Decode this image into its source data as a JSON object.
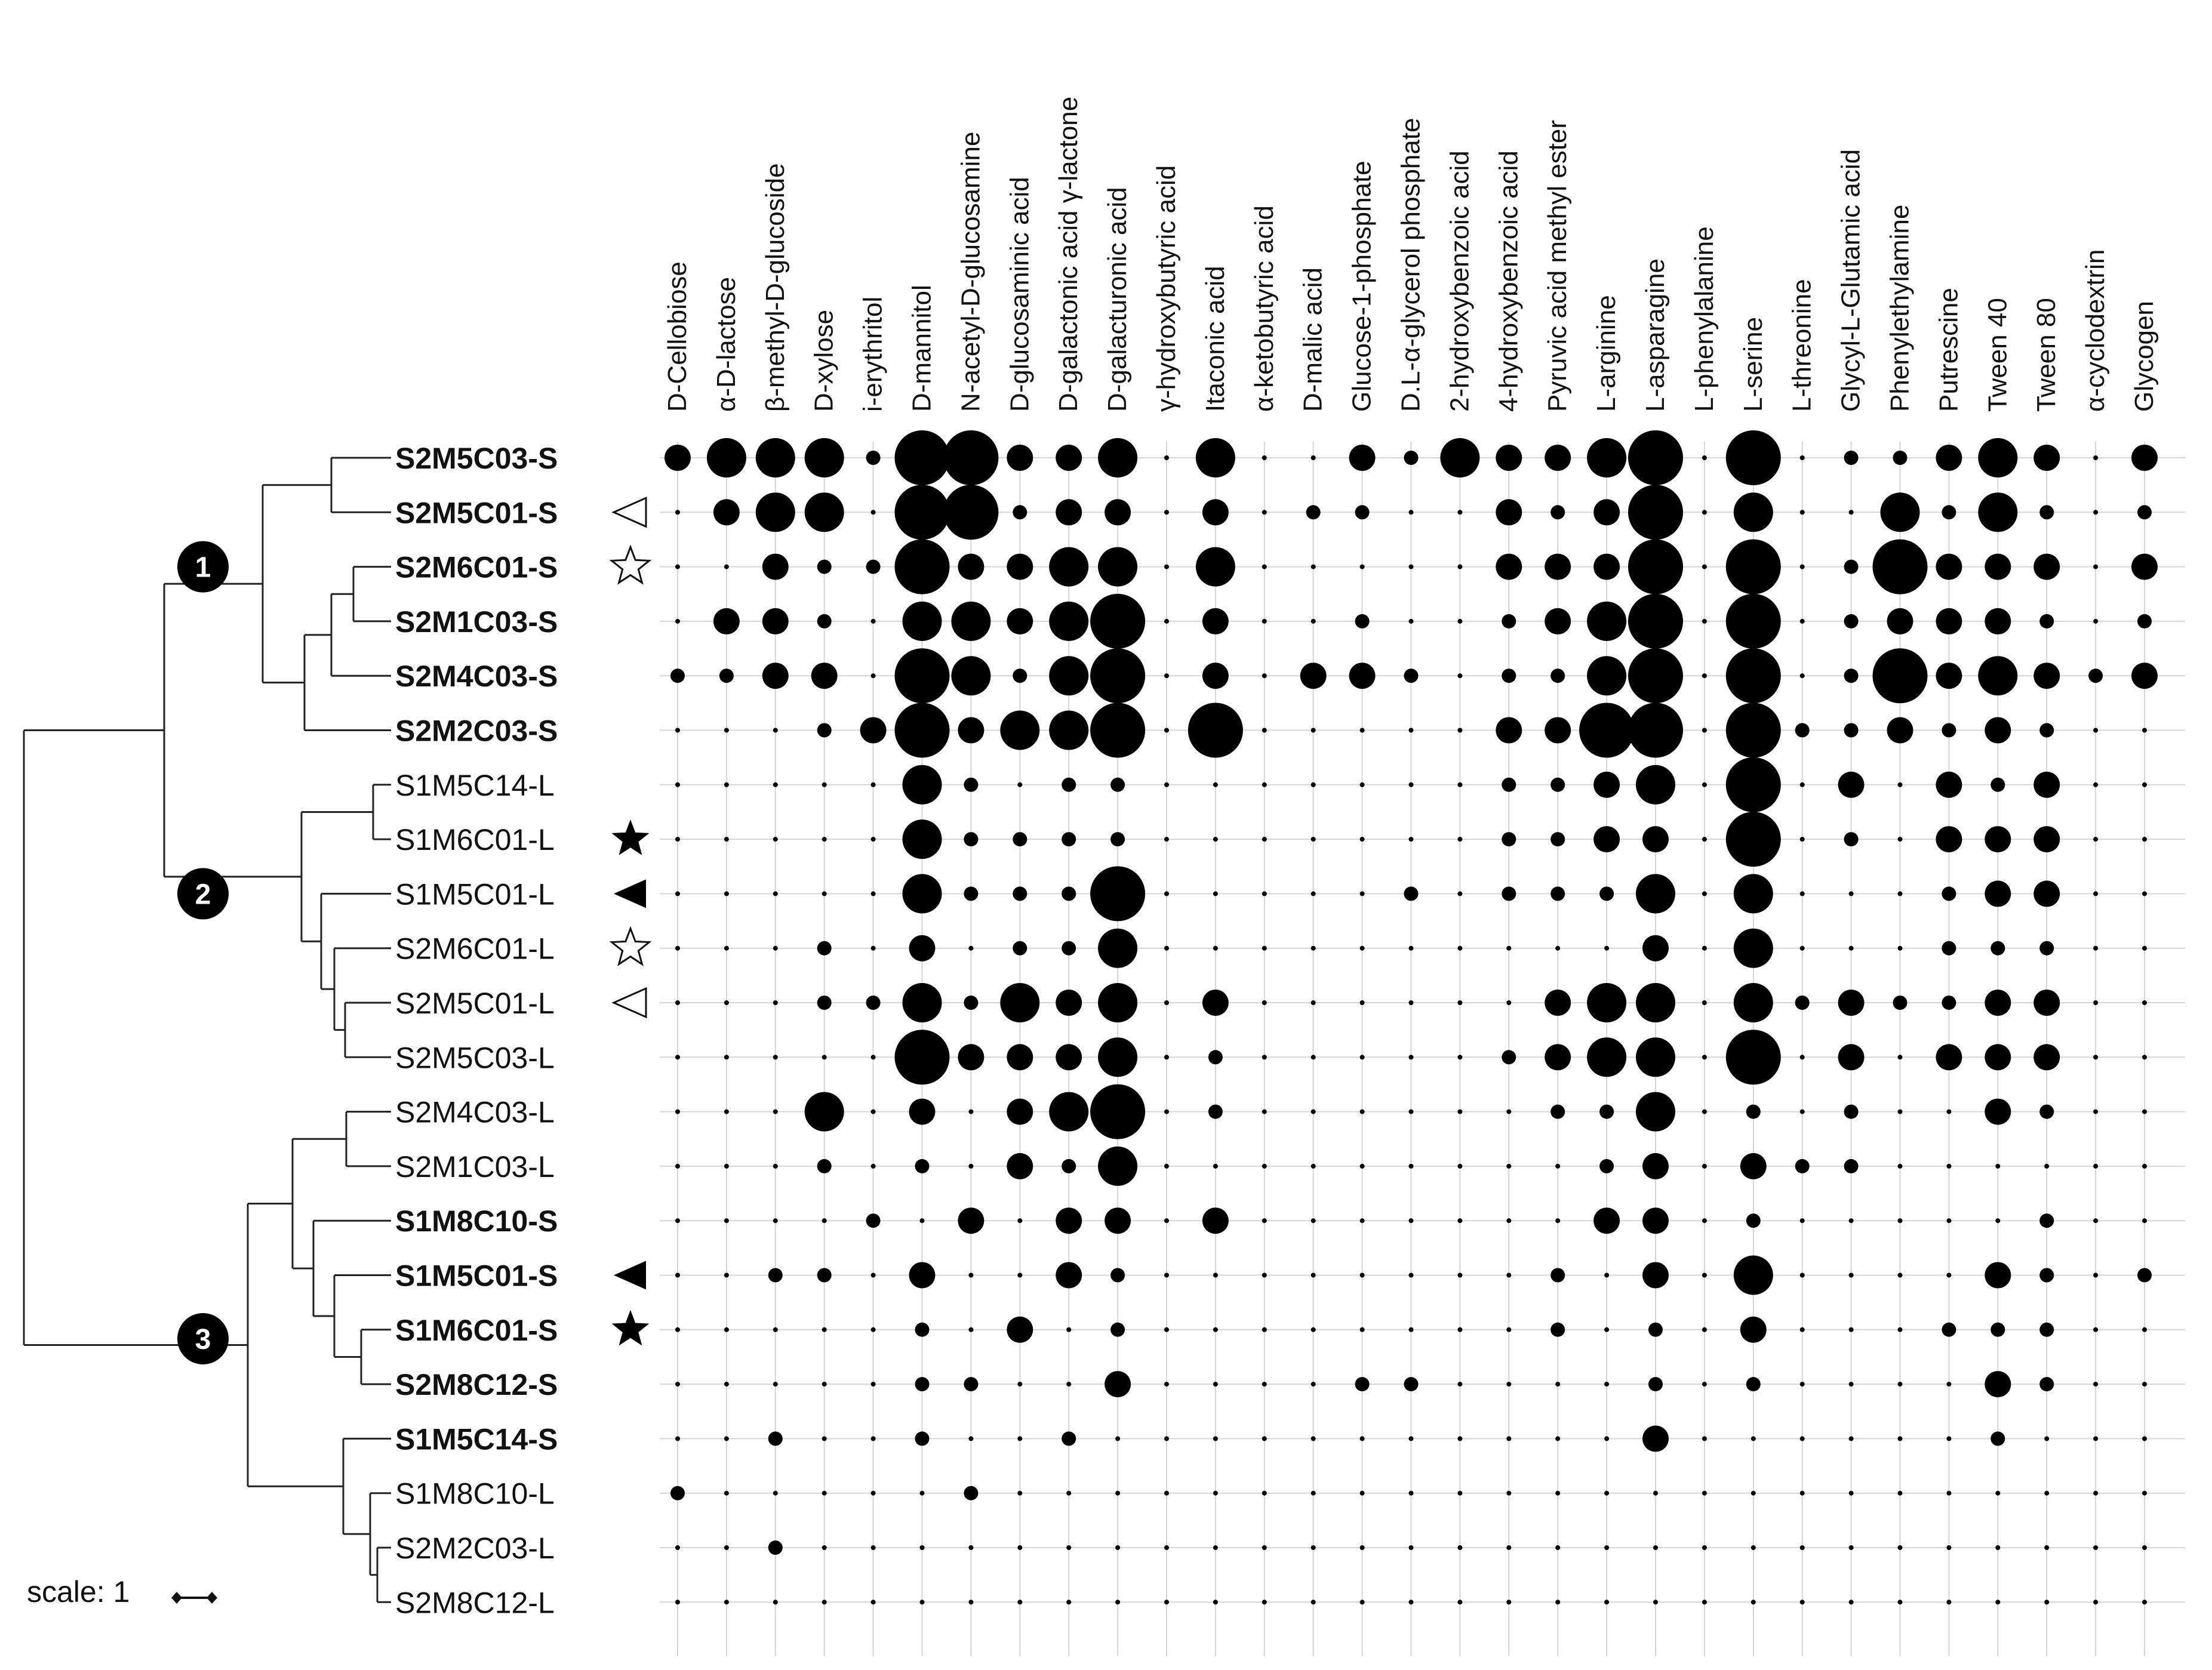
{
  "chart_data": {
    "type": "bubble-matrix-with-dendrogram",
    "scale_label": "scale: 1",
    "substrates": [
      "D-Cellobiose",
      "α-D-lactose",
      "β-methyl-D-glucoside",
      "D-xylose",
      "i-erythritol",
      "D-mannitol",
      "N-acetyl-D-glucosamine",
      "D-glucosaminic acid",
      "D-galactonic acid γ-lactone",
      "D-galacturonic acid",
      "γ-hydroxybutyric acid",
      "Itaconic acid",
      "α-ketobutyric acid",
      "D-malic acid",
      "Glucose-1-phosphate",
      "D.L-α-glycerol phosphate",
      "2-hydroxybenzoic acid",
      "4-hydroxybenzoic acid",
      "Pyruvic acid methyl ester",
      "L-arginine",
      "L-asparagine",
      "L-phenylalanine",
      "L-serine",
      "L-threonine",
      "Glycyl-L-Glutamic acid",
      "Phenylethylamine",
      "Putrescine",
      "Tween 40",
      "Tween 80",
      "α-cyclodextrin",
      "Glycogen"
    ],
    "clusters": [
      {
        "label": "1",
        "members": [
          "S2M5C03-S",
          "S2M5C01-S",
          "S2M6C01-S",
          "S2M1C03-S",
          "S2M4C03-S",
          "S2M2C03-S"
        ]
      },
      {
        "label": "2",
        "members": [
          "S1M5C14-L",
          "S1M6C01-L",
          "S1M5C01-L",
          "S2M6C01-L",
          "S2M5C01-L",
          "S2M5C03-L"
        ]
      },
      {
        "label": "3",
        "members": [
          "S2M4C03-L",
          "S2M1C03-L",
          "S1M8C10-S",
          "S1M5C01-S",
          "S1M6C01-S",
          "S2M8C12-S",
          "S1M5C14-S",
          "S1M8C10-L",
          "S2M2C03-L",
          "S2M8C12-L"
        ]
      }
    ],
    "value_scale": "relative utilisation (bubble area)",
    "samples": [
      {
        "name": "S2M5C03-S",
        "bold": true,
        "marker": "",
        "values": [
          2,
          3,
          3,
          3,
          1,
          4,
          4,
          2,
          2,
          3,
          0,
          3,
          0,
          0,
          2,
          1,
          3,
          2,
          2,
          3,
          4,
          0,
          4,
          0,
          1,
          1,
          2,
          3,
          2,
          0,
          2
        ]
      },
      {
        "name": "S2M5C01-S",
        "bold": true,
        "marker": "open-triangle-left",
        "values": [
          0,
          2,
          3,
          3,
          0,
          4,
          4,
          1,
          2,
          2,
          0,
          2,
          0,
          1,
          1,
          0,
          0,
          2,
          1,
          2,
          4,
          0,
          3,
          0,
          0,
          3,
          1,
          3,
          1,
          0,
          1
        ]
      },
      {
        "name": "S2M6C01-S",
        "bold": true,
        "marker": "open-star",
        "values": [
          0,
          0,
          2,
          1,
          1,
          4,
          2,
          2,
          3,
          3,
          0,
          3,
          0,
          0,
          0,
          0,
          0,
          2,
          2,
          2,
          4,
          0,
          4,
          0,
          1,
          4,
          2,
          2,
          2,
          0,
          2
        ]
      },
      {
        "name": "S2M1C03-S",
        "bold": true,
        "marker": "",
        "values": [
          0,
          2,
          2,
          1,
          0,
          3,
          3,
          2,
          3,
          4,
          0,
          2,
          0,
          0,
          1,
          0,
          0,
          1,
          2,
          3,
          4,
          0,
          4,
          0,
          1,
          2,
          2,
          2,
          1,
          0,
          1
        ]
      },
      {
        "name": "S2M4C03-S",
        "bold": true,
        "marker": "",
        "values": [
          1,
          1,
          2,
          2,
          0,
          4,
          3,
          1,
          3,
          4,
          0,
          2,
          0,
          2,
          2,
          1,
          0,
          1,
          1,
          3,
          4,
          0,
          4,
          0,
          1,
          4,
          2,
          3,
          2,
          1,
          2
        ]
      },
      {
        "name": "S2M2C03-S",
        "bold": true,
        "marker": "",
        "values": [
          0,
          0,
          0,
          1,
          2,
          4,
          2,
          3,
          3,
          4,
          0,
          4,
          0,
          0,
          0,
          0,
          0,
          2,
          2,
          4,
          4,
          0,
          4,
          1,
          1,
          2,
          1,
          2,
          1,
          0,
          0
        ]
      },
      {
        "name": "S1M5C14-L",
        "bold": false,
        "marker": "",
        "values": [
          0,
          0,
          0,
          0,
          0,
          3,
          1,
          0,
          1,
          1,
          0,
          0,
          0,
          0,
          0,
          0,
          0,
          1,
          1,
          2,
          3,
          0,
          4,
          0,
          2,
          0,
          2,
          1,
          2,
          0,
          0
        ]
      },
      {
        "name": "S1M6C01-L",
        "bold": false,
        "marker": "filled-star",
        "values": [
          0,
          0,
          0,
          0,
          0,
          3,
          1,
          1,
          1,
          1,
          0,
          0,
          0,
          0,
          0,
          0,
          0,
          1,
          1,
          2,
          2,
          0,
          4,
          0,
          1,
          0,
          2,
          2,
          2,
          0,
          0
        ]
      },
      {
        "name": "S1M5C01-L",
        "bold": false,
        "marker": "filled-triangle-left",
        "values": [
          0,
          0,
          0,
          0,
          0,
          3,
          1,
          1,
          1,
          4,
          0,
          0,
          0,
          0,
          0,
          1,
          0,
          1,
          1,
          1,
          3,
          0,
          3,
          0,
          0,
          0,
          1,
          2,
          2,
          0,
          0
        ]
      },
      {
        "name": "S2M6C01-L",
        "bold": false,
        "marker": "open-star",
        "values": [
          0,
          0,
          0,
          1,
          0,
          2,
          0,
          1,
          1,
          3,
          0,
          0,
          0,
          0,
          0,
          0,
          0,
          0,
          0,
          0,
          2,
          0,
          3,
          0,
          0,
          0,
          1,
          1,
          1,
          0,
          0
        ]
      },
      {
        "name": "S2M5C01-L",
        "bold": false,
        "marker": "open-triangle-left",
        "values": [
          0,
          0,
          0,
          1,
          1,
          3,
          1,
          3,
          2,
          3,
          0,
          2,
          0,
          0,
          0,
          0,
          0,
          0,
          2,
          3,
          3,
          0,
          3,
          1,
          2,
          1,
          1,
          2,
          2,
          0,
          0
        ]
      },
      {
        "name": "S2M5C03-L",
        "bold": false,
        "marker": "",
        "values": [
          0,
          0,
          0,
          0,
          0,
          4,
          2,
          2,
          2,
          3,
          0,
          1,
          0,
          0,
          0,
          0,
          0,
          1,
          2,
          3,
          3,
          0,
          4,
          0,
          2,
          0,
          2,
          2,
          2,
          0,
          0
        ]
      },
      {
        "name": "S2M4C03-L",
        "bold": false,
        "marker": "",
        "values": [
          0,
          0,
          0,
          3,
          0,
          2,
          0,
          2,
          3,
          4,
          0,
          1,
          0,
          0,
          0,
          0,
          0,
          0,
          1,
          1,
          3,
          0,
          1,
          0,
          1,
          0,
          0,
          2,
          1,
          0,
          0
        ]
      },
      {
        "name": "S2M1C03-L",
        "bold": false,
        "marker": "",
        "values": [
          0,
          0,
          0,
          1,
          0,
          1,
          0,
          2,
          1,
          3,
          0,
          0,
          0,
          0,
          0,
          0,
          0,
          0,
          0,
          1,
          2,
          0,
          2,
          1,
          1,
          0,
          0,
          0,
          0,
          0,
          0
        ]
      },
      {
        "name": "S1M8C10-S",
        "bold": true,
        "marker": "",
        "values": [
          0,
          0,
          0,
          0,
          1,
          0,
          2,
          0,
          2,
          2,
          0,
          2,
          0,
          0,
          0,
          0,
          0,
          0,
          0,
          2,
          2,
          0,
          1,
          0,
          0,
          0,
          0,
          0,
          1,
          0,
          0
        ]
      },
      {
        "name": "S1M5C01-S",
        "bold": true,
        "marker": "filled-triangle-left",
        "values": [
          0,
          0,
          1,
          1,
          0,
          2,
          0,
          0,
          2,
          1,
          0,
          0,
          0,
          0,
          0,
          0,
          0,
          0,
          1,
          0,
          2,
          0,
          3,
          0,
          0,
          0,
          0,
          2,
          1,
          0,
          1
        ]
      },
      {
        "name": "S1M6C01-S",
        "bold": true,
        "marker": "filled-star",
        "values": [
          0,
          0,
          0,
          0,
          0,
          1,
          0,
          2,
          0,
          1,
          0,
          0,
          0,
          0,
          0,
          0,
          0,
          0,
          1,
          0,
          1,
          0,
          2,
          0,
          0,
          0,
          1,
          1,
          1,
          0,
          0
        ]
      },
      {
        "name": "S2M8C12-S",
        "bold": true,
        "marker": "",
        "values": [
          0,
          0,
          0,
          0,
          0,
          1,
          1,
          0,
          0,
          2,
          0,
          0,
          0,
          0,
          1,
          1,
          0,
          0,
          0,
          0,
          1,
          0,
          1,
          0,
          0,
          0,
          0,
          2,
          1,
          0,
          0
        ]
      },
      {
        "name": "S1M5C14-S",
        "bold": true,
        "marker": "",
        "values": [
          0,
          0,
          1,
          0,
          0,
          1,
          0,
          0,
          1,
          0,
          0,
          0,
          0,
          0,
          0,
          0,
          0,
          0,
          0,
          0,
          2,
          0,
          0,
          0,
          0,
          0,
          0,
          1,
          0,
          0,
          0
        ]
      },
      {
        "name": "S1M8C10-L",
        "bold": false,
        "marker": "",
        "values": [
          1,
          0,
          0,
          0,
          0,
          0,
          1,
          0,
          0,
          0,
          0,
          0,
          0,
          0,
          0,
          0,
          0,
          0,
          0,
          0,
          0,
          0,
          0,
          0,
          0,
          0,
          0,
          0,
          0,
          0,
          0
        ]
      },
      {
        "name": "S2M2C03-L",
        "bold": false,
        "marker": "",
        "values": [
          0,
          0,
          1,
          0,
          0,
          0,
          0,
          0,
          0,
          0,
          0,
          0,
          0,
          0,
          0,
          0,
          0,
          0,
          0,
          0,
          0,
          0,
          0,
          0,
          0,
          0,
          0,
          0,
          0,
          0,
          0
        ]
      },
      {
        "name": "S2M8C12-L",
        "bold": false,
        "marker": "",
        "values": [
          0,
          0,
          0,
          0,
          0,
          0,
          0,
          0,
          0,
          0,
          0,
          0,
          0,
          0,
          0,
          0,
          0,
          0,
          0,
          0,
          0,
          0,
          0,
          0,
          0,
          0,
          0,
          0,
          0,
          0,
          0
        ]
      }
    ]
  }
}
